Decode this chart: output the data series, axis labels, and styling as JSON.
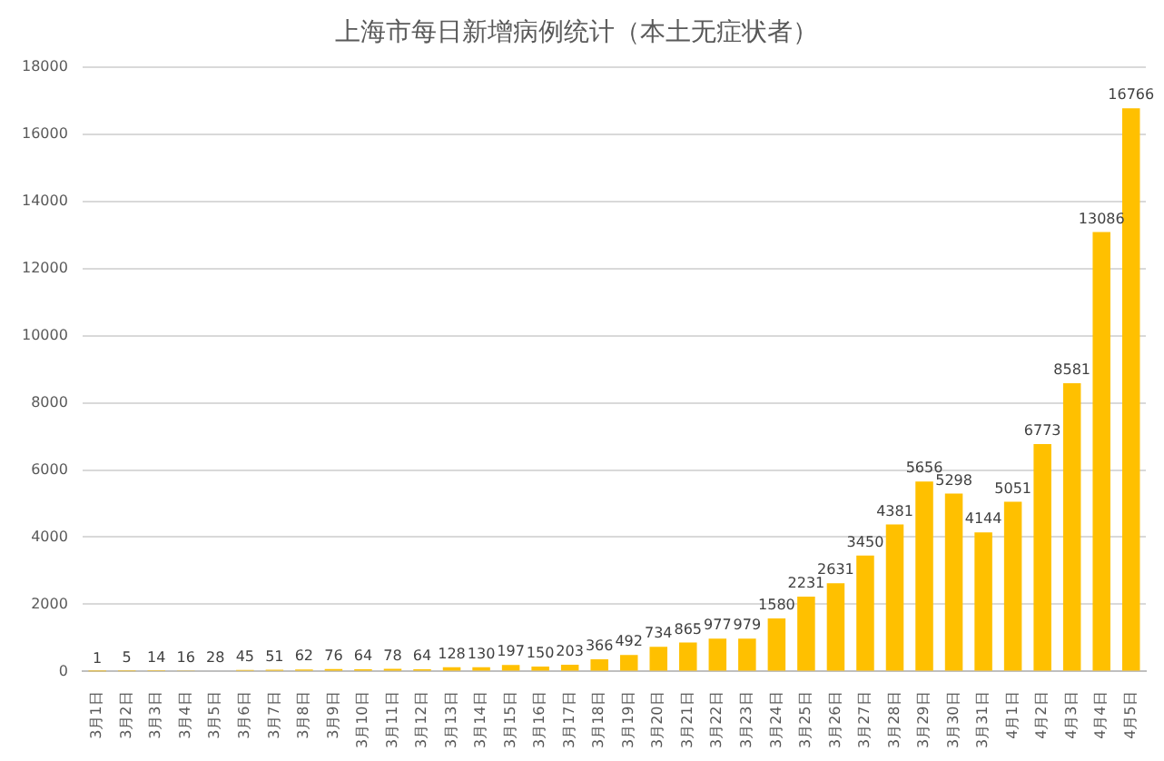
{
  "chart_data": {
    "type": "bar",
    "title": "上海市每日新增病例统计（本土无症状者）",
    "categories": [
      "3月1日",
      "3月2日",
      "3月3日",
      "3月4日",
      "3月5日",
      "3月6日",
      "3月7日",
      "3月8日",
      "3月9日",
      "3月10日",
      "3月11日",
      "3月12日",
      "3月13日",
      "3月14日",
      "3月15日",
      "3月16日",
      "3月17日",
      "3月18日",
      "3月19日",
      "3月20日",
      "3月21日",
      "3月22日",
      "3月23日",
      "3月24日",
      "3月25日",
      "3月26日",
      "3月27日",
      "3月28日",
      "3月29日",
      "3月30日",
      "3月31日",
      "4月1日",
      "4月2日",
      "4月3日",
      "4月4日",
      "4月5日"
    ],
    "values": [
      1,
      5,
      14,
      16,
      28,
      45,
      51,
      62,
      76,
      64,
      78,
      64,
      128,
      130,
      197,
      150,
      203,
      366,
      492,
      734,
      865,
      977,
      979,
      1580,
      2231,
      2631,
      3450,
      4381,
      5656,
      5298,
      4144,
      5051,
      6773,
      8581,
      13086,
      16766
    ],
    "color": "#ffc000",
    "ylim": [
      0,
      18000
    ],
    "yticks": [
      0,
      2000,
      4000,
      6000,
      8000,
      10000,
      12000,
      14000,
      16000,
      18000
    ],
    "grid": "y",
    "data_labels": true
  }
}
